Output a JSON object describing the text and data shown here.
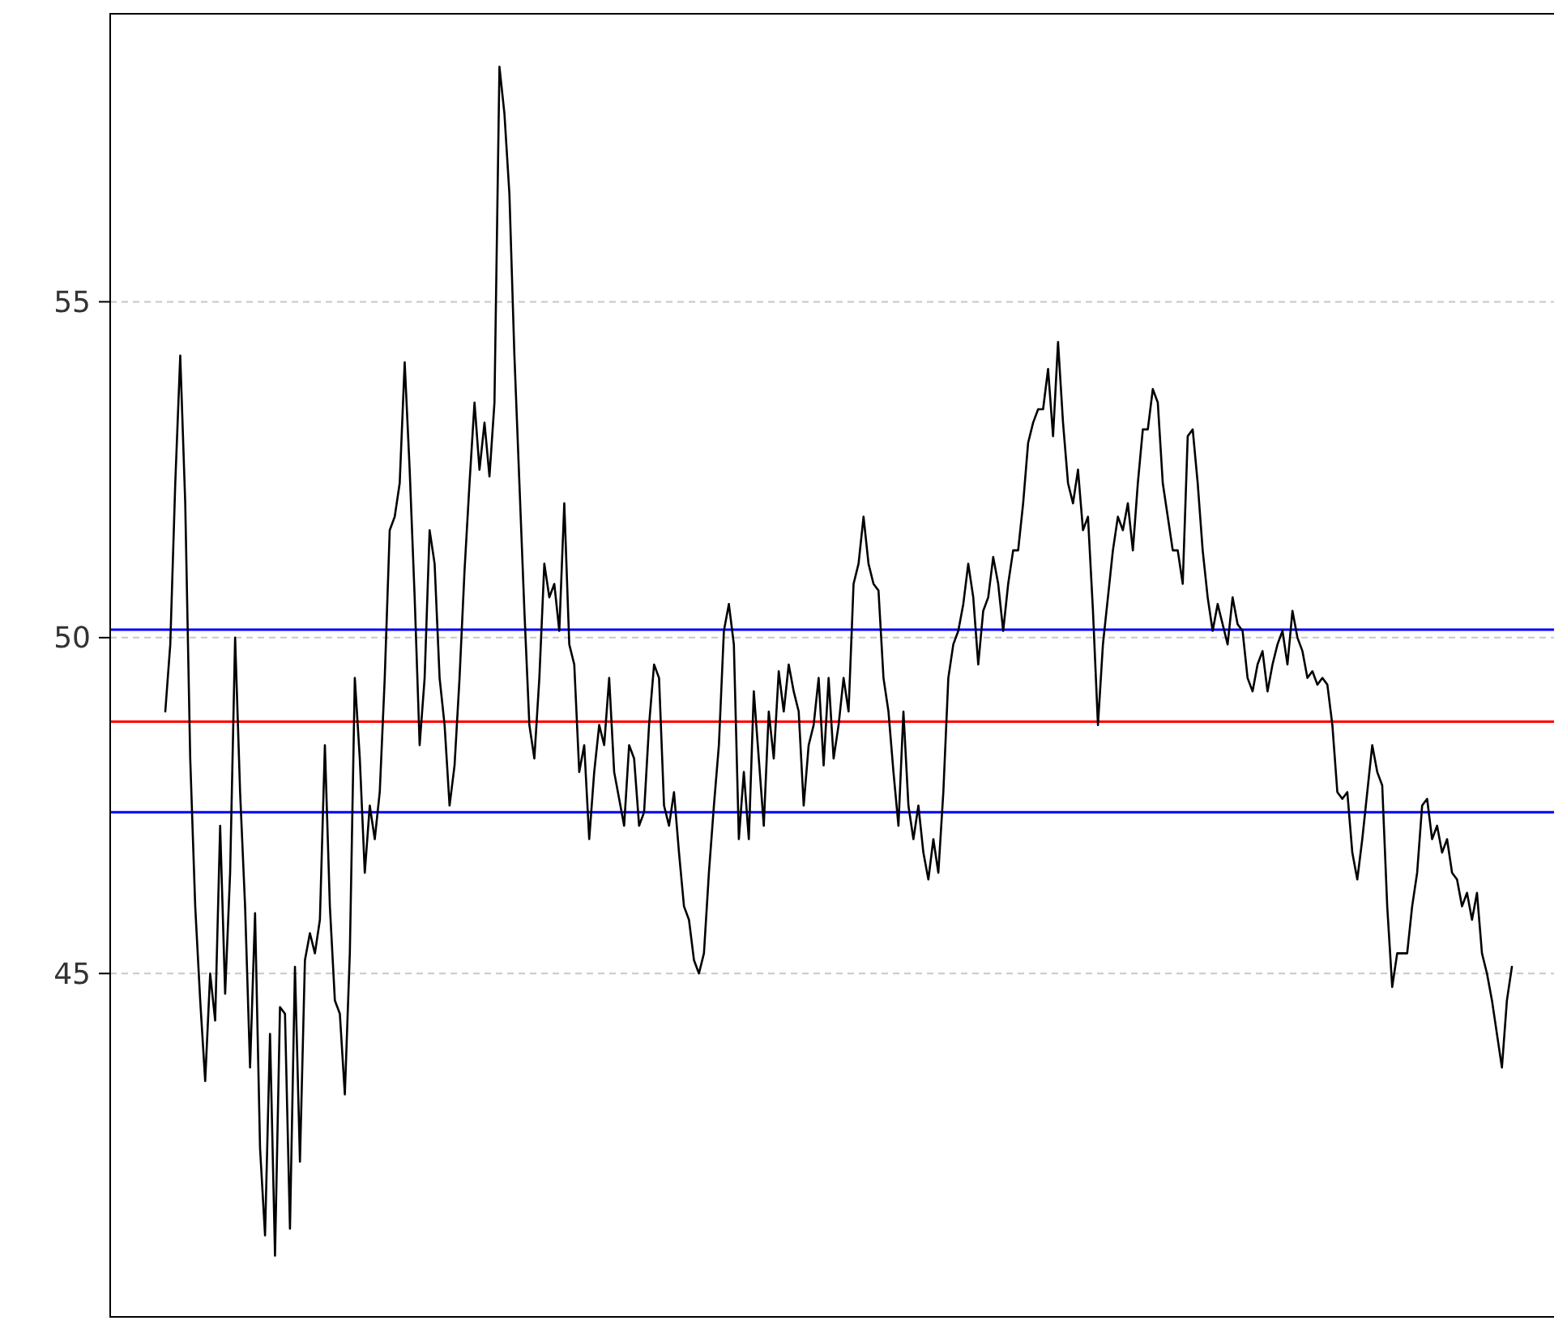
{
  "chart_data": {
    "type": "line",
    "categories": [
      null,
      null,
      null,
      null,
      null,
      null,
      null,
      null,
      null,
      null,
      null,
      null,
      null,
      null,
      null,
      null,
      null,
      null,
      null,
      null,
      null,
      null,
      null,
      null,
      null,
      null,
      null,
      null,
      null,
      null,
      null,
      null,
      null,
      null,
      null,
      null,
      null,
      null,
      null,
      null,
      null,
      null,
      null,
      null,
      null,
      null,
      null,
      null,
      null,
      null,
      null,
      null,
      null,
      null,
      null,
      null,
      null,
      null,
      null,
      null,
      null,
      null,
      null,
      null,
      null,
      null,
      null,
      null,
      null,
      null,
      null,
      null,
      null,
      null,
      null,
      null,
      null,
      null,
      null,
      null,
      null,
      null,
      null,
      null,
      null,
      null,
      null,
      null,
      null,
      null,
      null,
      null,
      null,
      null,
      null,
      null,
      null,
      null,
      null,
      null,
      null,
      null,
      null,
      null,
      null,
      null,
      null,
      null,
      null,
      null,
      null,
      null,
      null,
      null,
      null,
      null,
      null,
      null,
      null,
      null,
      null,
      null,
      null,
      null,
      null,
      null,
      null,
      null,
      null,
      null,
      null,
      null,
      null,
      null,
      null,
      null,
      null,
      null,
      null,
      null,
      null,
      null,
      null,
      null,
      null,
      null,
      null,
      null,
      null,
      null,
      null,
      null,
      null,
      null,
      null,
      null,
      null,
      null,
      null,
      null,
      null,
      null,
      null,
      null,
      null,
      null,
      null,
      null,
      null,
      null,
      null,
      null,
      null,
      null,
      null,
      null,
      null,
      null,
      null,
      null,
      null,
      null,
      null,
      null,
      null,
      null,
      null,
      null,
      null,
      null,
      null,
      null,
      null,
      null,
      null,
      null,
      null,
      null,
      null,
      null,
      null,
      null,
      null,
      null,
      null,
      null,
      null,
      null,
      null,
      null,
      null,
      null,
      null,
      null,
      null,
      null,
      null,
      null,
      null,
      null,
      null,
      null,
      null,
      null,
      null,
      null,
      null,
      null,
      null,
      null,
      null,
      null,
      null,
      null,
      null,
      null,
      null,
      null,
      null,
      null,
      null,
      null,
      null,
      null,
      null,
      null,
      null,
      null,
      null,
      null,
      null,
      null,
      null,
      null,
      null,
      null,
      null,
      null,
      null,
      null,
      null,
      null,
      null,
      null,
      null,
      null,
      null,
      null,
      null,
      null,
      null
    ],
    "values": [
      48.9,
      49.9,
      52.3,
      54.2,
      52.0,
      48.2,
      46.0,
      44.6,
      43.4,
      45.0,
      44.3,
      47.2,
      44.7,
      46.5,
      50.0,
      47.7,
      46.0,
      43.6,
      45.9,
      42.4,
      41.1,
      44.1,
      40.8,
      44.5,
      44.4,
      41.2,
      45.1,
      42.2,
      45.2,
      45.6,
      45.3,
      45.8,
      48.4,
      46.0,
      44.6,
      44.4,
      43.2,
      45.3,
      49.4,
      48.2,
      46.5,
      47.5,
      47.0,
      47.7,
      49.4,
      51.6,
      51.8,
      52.3,
      54.1,
      52.5,
      50.6,
      48.4,
      49.4,
      51.6,
      51.1,
      49.4,
      48.7,
      47.5,
      48.1,
      49.4,
      51.0,
      52.3,
      53.5,
      52.5,
      53.2,
      52.4,
      53.5,
      58.5,
      57.8,
      56.6,
      54.2,
      52.3,
      50.4,
      48.7,
      48.2,
      49.4,
      51.1,
      50.6,
      50.8,
      50.1,
      52.0,
      49.9,
      49.6,
      48.0,
      48.4,
      47.0,
      48.0,
      48.7,
      48.4,
      49.4,
      48.0,
      47.6,
      47.2,
      48.4,
      48.2,
      47.2,
      47.4,
      48.7,
      49.6,
      49.4,
      47.5,
      47.2,
      47.7,
      46.8,
      46.0,
      45.8,
      45.2,
      45.0,
      45.3,
      46.5,
      47.5,
      48.4,
      50.1,
      50.5,
      49.9,
      47.0,
      48.0,
      47.0,
      49.2,
      48.2,
      47.2,
      48.9,
      48.2,
      49.5,
      48.9,
      49.6,
      49.2,
      48.9,
      47.5,
      48.4,
      48.7,
      49.4,
      48.1,
      49.4,
      48.2,
      48.7,
      49.4,
      48.9,
      50.8,
      51.1,
      51.8,
      51.1,
      50.8,
      50.7,
      49.4,
      48.9,
      48.0,
      47.2,
      48.9,
      47.5,
      47.0,
      47.5,
      46.8,
      46.4,
      47.0,
      46.5,
      47.7,
      49.4,
      49.9,
      50.1,
      50.5,
      51.1,
      50.6,
      49.6,
      50.4,
      50.6,
      51.2,
      50.8,
      50.1,
      50.8,
      51.3,
      51.3,
      52.0,
      52.9,
      53.2,
      53.4,
      53.4,
      54.0,
      53.0,
      54.4,
      53.2,
      52.3,
      52.0,
      52.5,
      51.6,
      51.8,
      50.4,
      48.7,
      49.9,
      50.6,
      51.3,
      51.8,
      51.6,
      52.0,
      51.3,
      52.3,
      53.1,
      53.1,
      53.7,
      53.5,
      52.3,
      51.8,
      51.3,
      51.3,
      50.8,
      53.0,
      53.1,
      52.3,
      51.3,
      50.6,
      50.1,
      50.5,
      50.2,
      49.9,
      50.6,
      50.2,
      50.1,
      49.4,
      49.2,
      49.6,
      49.8,
      49.2,
      49.6,
      49.9,
      50.1,
      49.6,
      50.4,
      50.0,
      49.8,
      49.4,
      49.5,
      49.3,
      49.4,
      49.3,
      48.7,
      47.7,
      47.6,
      47.7,
      46.8,
      46.4,
      47.0,
      47.7,
      48.4,
      48.0,
      47.8,
      46.0,
      44.8,
      45.3,
      45.3,
      45.3,
      46.0,
      46.5,
      47.5,
      47.6,
      47.0,
      47.2,
      46.8,
      47.0,
      46.5,
      46.4,
      46.0,
      46.2,
      45.8,
      46.2,
      45.3,
      45.0,
      44.6,
      44.1,
      43.6,
      44.6,
      45.1
    ],
    "color": "#000000",
    "ylim": [
      39.9,
      59.3
    ],
    "yticks": [
      45,
      50,
      55
    ],
    "grid": "y",
    "ref_lines": [
      {
        "axis": "y",
        "value": 50.12,
        "color": "#0000ff"
      },
      {
        "axis": "y",
        "value": 48.75,
        "color": "#ff0000"
      },
      {
        "axis": "y",
        "value": 47.4,
        "color": "#0000ff"
      }
    ]
  }
}
